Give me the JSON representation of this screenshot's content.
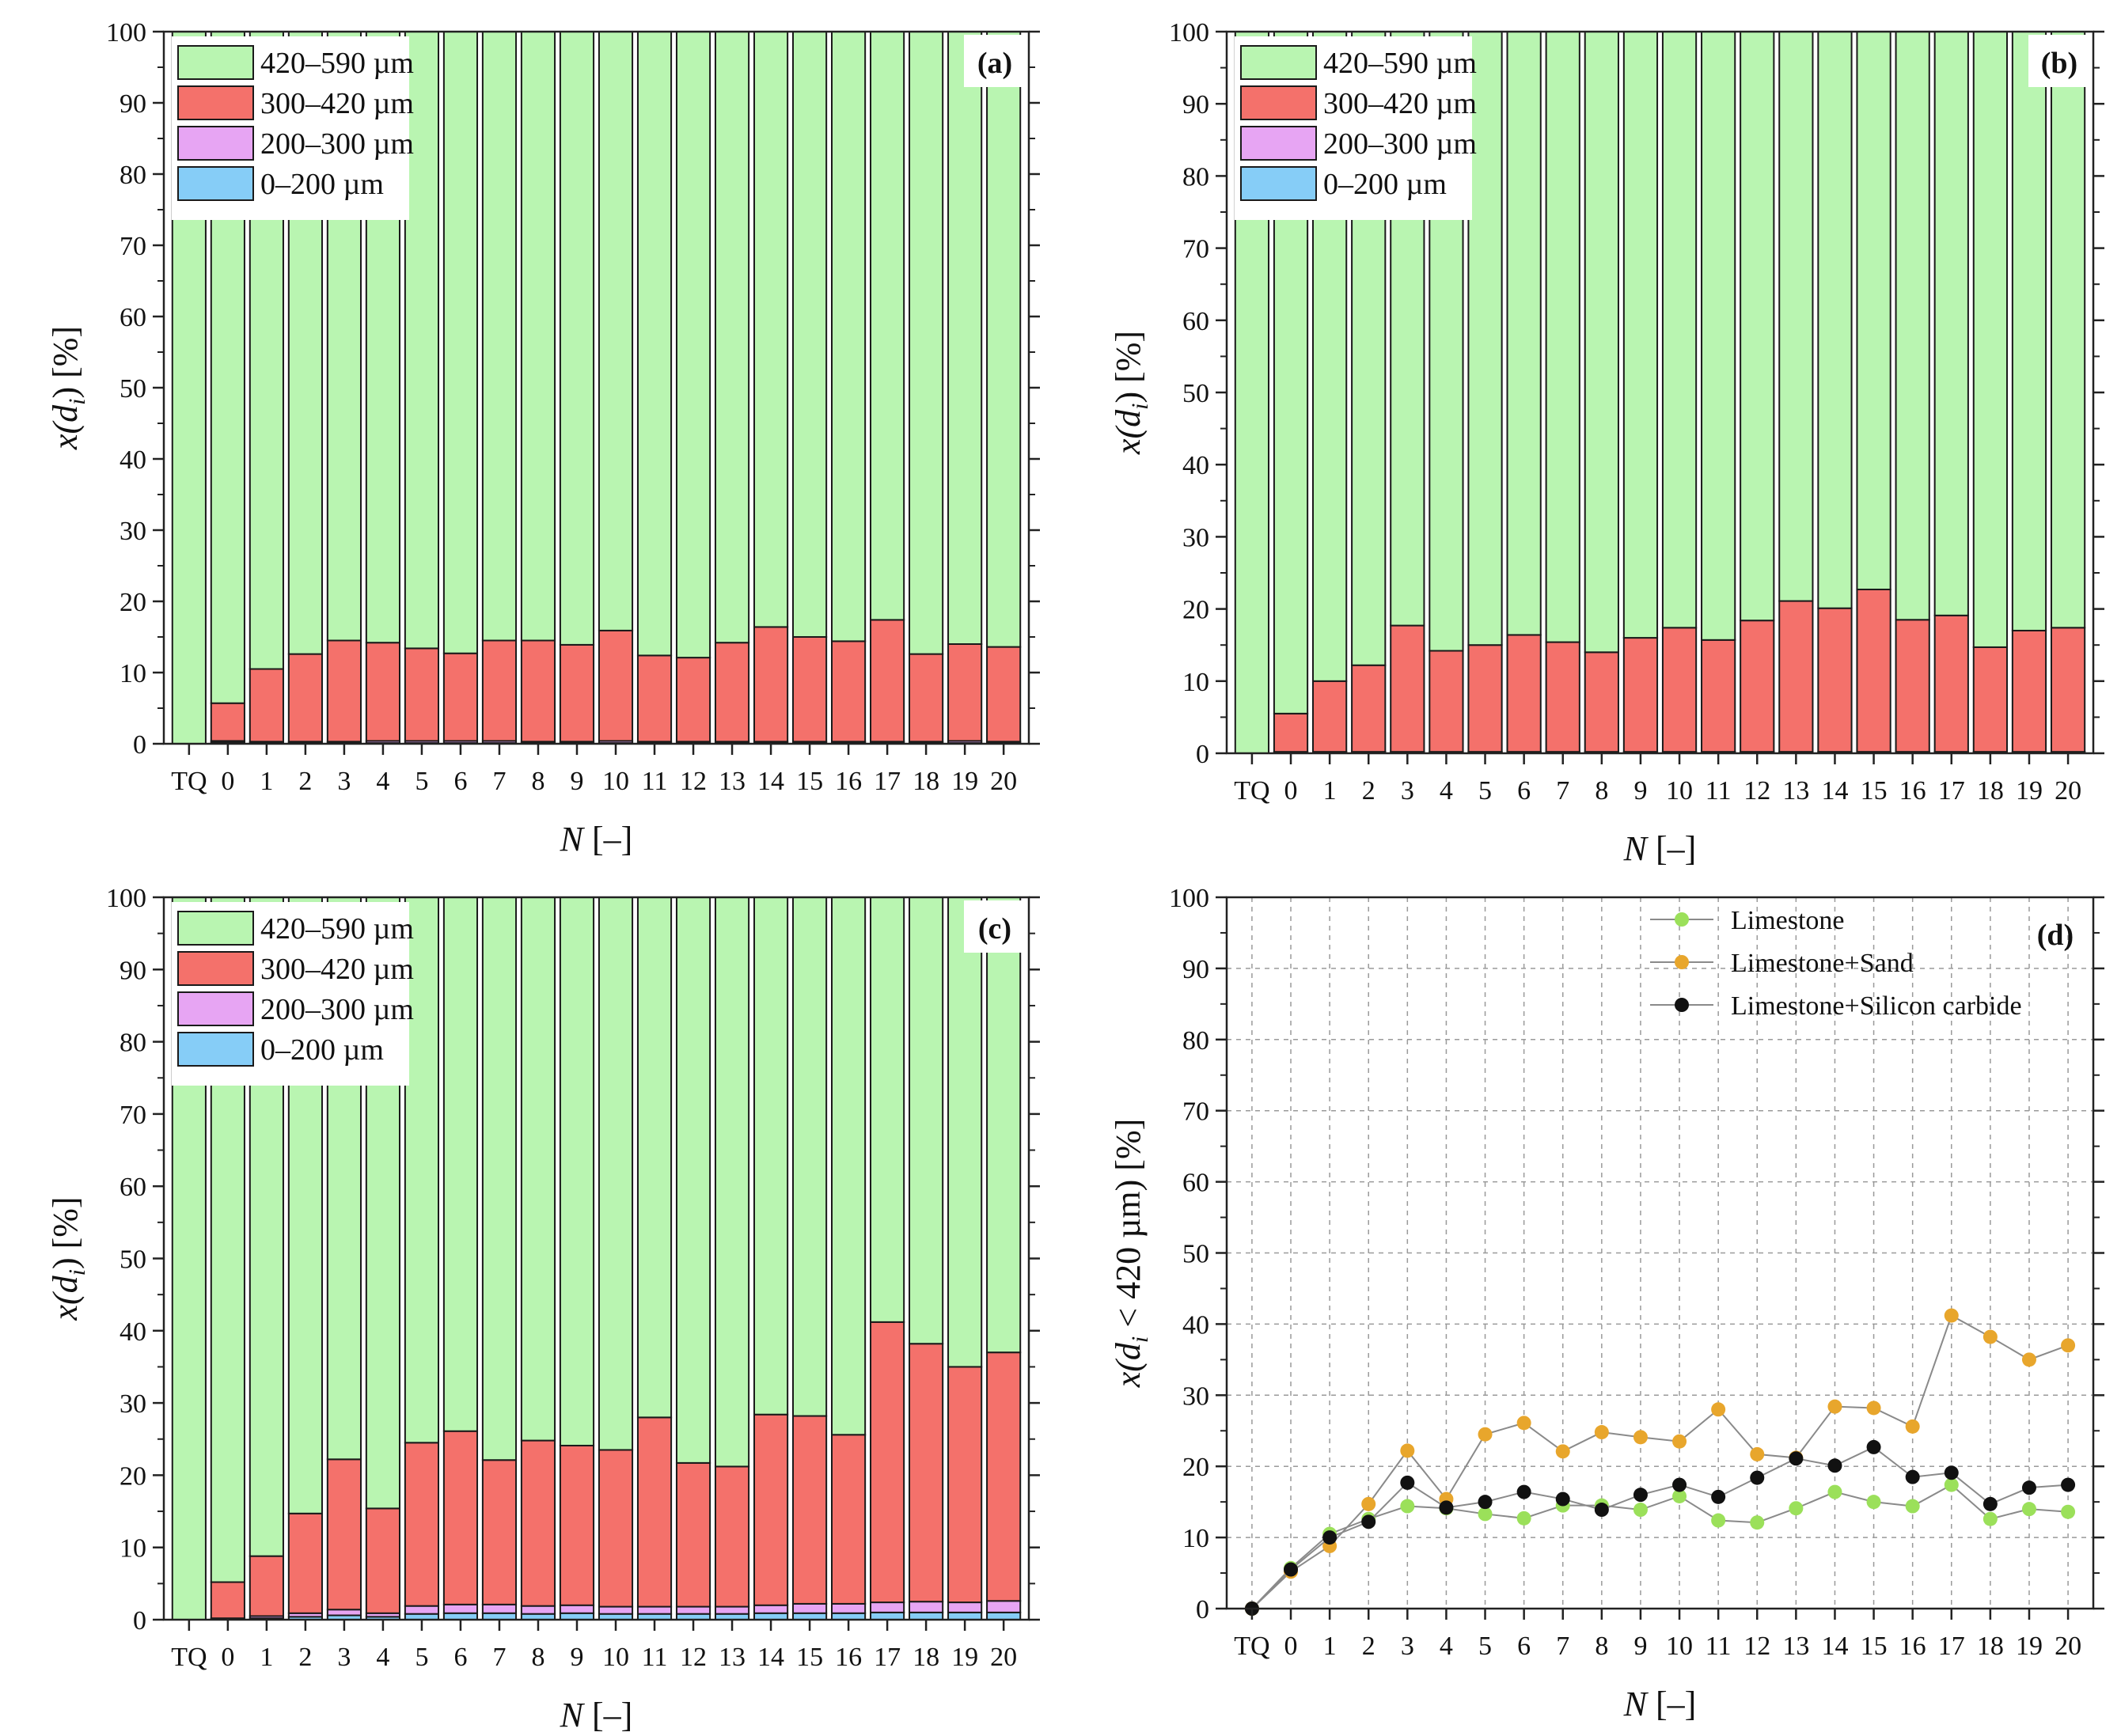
{
  "colors": {
    "range_420_590": "#b9f5b1",
    "range_300_420": "#f4716b",
    "range_200_300": "#e7a5f3",
    "range_0_200": "#86cdf7",
    "limestone": "#9be05a",
    "limestone_sand": "#e8a62c",
    "limestone_sic": "#111111"
  },
  "chart_data": [
    {
      "type": "bar",
      "stacked": true,
      "panel_label": "(a)",
      "categories": [
        "TQ",
        "0",
        "1",
        "2",
        "3",
        "4",
        "5",
        "6",
        "7",
        "8",
        "9",
        "10",
        "11",
        "12",
        "13",
        "14",
        "15",
        "16",
        "17",
        "18",
        "19",
        "20"
      ],
      "series": [
        {
          "name": "0–200     µm",
          "color_key": "range_0_200",
          "values": [
            0,
            0.2,
            0.1,
            0.1,
            0.1,
            0.1,
            0.1,
            0.1,
            0.1,
            0.1,
            0.1,
            0.1,
            0.1,
            0.1,
            0.1,
            0.1,
            0.1,
            0.1,
            0.1,
            0.1,
            0.1,
            0.1
          ]
        },
        {
          "name": "200–300 µm",
          "color_key": "range_200_300",
          "values": [
            0,
            0.2,
            0.2,
            0.2,
            0.2,
            0.3,
            0.3,
            0.3,
            0.3,
            0.2,
            0.2,
            0.3,
            0.2,
            0.2,
            0.2,
            0.2,
            0.2,
            0.2,
            0.2,
            0.2,
            0.3,
            0.2
          ]
        },
        {
          "name": "300–420 µm",
          "color_key": "range_300_420",
          "values": [
            0,
            5.3,
            10.2,
            12.3,
            14.2,
            13.8,
            13.0,
            12.3,
            14.1,
            14.2,
            13.6,
            15.5,
            12.1,
            11.8,
            13.9,
            16.1,
            14.7,
            14.1,
            17.1,
            12.3,
            13.6,
            13.3
          ]
        },
        {
          "name": "420–590 µm",
          "color_key": "range_420_590",
          "values": [
            100,
            94.3,
            89.5,
            87.4,
            85.5,
            85.8,
            86.6,
            87.3,
            85.5,
            85.5,
            86.1,
            84.1,
            87.6,
            87.9,
            85.8,
            83.6,
            85.0,
            85.6,
            82.6,
            87.4,
            86.0,
            86.4
          ]
        }
      ],
      "xlabel_italic": "N",
      "xlabel_unit": " [–]",
      "ylabel_prefix": "x(",
      "ylabel_italic": "d",
      "ylabel_sub": "i",
      "ylabel_suffix": ") [%]",
      "ylim": [
        0,
        100
      ],
      "yticks": [
        0,
        10,
        20,
        30,
        40,
        50,
        60,
        70,
        80,
        90,
        100
      ],
      "legend_position": "top-left"
    },
    {
      "type": "bar",
      "stacked": true,
      "panel_label": "(b)",
      "categories": [
        "TQ",
        "0",
        "1",
        "2",
        "3",
        "4",
        "5",
        "6",
        "7",
        "8",
        "9",
        "10",
        "11",
        "12",
        "13",
        "14",
        "15",
        "16",
        "17",
        "18",
        "19",
        "20"
      ],
      "series": [
        {
          "name": "0–200     µm",
          "color_key": "range_0_200",
          "values": [
            0,
            0.1,
            0.1,
            0.1,
            0.1,
            0.1,
            0.1,
            0.1,
            0.1,
            0.1,
            0.1,
            0.1,
            0.1,
            0.1,
            0.1,
            0.1,
            0.1,
            0.1,
            0.1,
            0.1,
            0.1,
            0.1
          ]
        },
        {
          "name": "200–300 µm",
          "color_key": "range_200_300",
          "values": [
            0,
            0.1,
            0.1,
            0.1,
            0.1,
            0.1,
            0.1,
            0.1,
            0.1,
            0.1,
            0.1,
            0.1,
            0.1,
            0.1,
            0.1,
            0.1,
            0.1,
            0.1,
            0.1,
            0.1,
            0.1,
            0.1
          ]
        },
        {
          "name": "300–420 µm",
          "color_key": "range_300_420",
          "values": [
            0,
            5.3,
            9.8,
            12.0,
            17.5,
            14.0,
            14.8,
            16.2,
            15.2,
            13.8,
            15.8,
            17.2,
            15.5,
            18.2,
            20.9,
            19.9,
            22.5,
            18.3,
            18.9,
            14.5,
            16.8,
            17.2
          ]
        },
        {
          "name": "420–590 µm",
          "color_key": "range_420_590",
          "values": [
            100,
            94.5,
            90.0,
            87.8,
            82.3,
            85.8,
            85.0,
            83.6,
            84.6,
            86.0,
            84.0,
            82.6,
            84.3,
            81.6,
            78.9,
            79.9,
            77.3,
            81.5,
            80.9,
            85.3,
            83.0,
            82.6
          ]
        }
      ],
      "xlabel_italic": "N",
      "xlabel_unit": " [–]",
      "ylabel_prefix": "x(",
      "ylabel_italic": "d",
      "ylabel_sub": "i",
      "ylabel_suffix": ") [%]",
      "ylim": [
        0,
        100
      ],
      "yticks": [
        0,
        10,
        20,
        30,
        40,
        50,
        60,
        70,
        80,
        90,
        100
      ],
      "legend_position": "top-left"
    },
    {
      "type": "bar",
      "stacked": true,
      "panel_label": "(c)",
      "categories": [
        "TQ",
        "0",
        "1",
        "2",
        "3",
        "4",
        "5",
        "6",
        "7",
        "8",
        "9",
        "10",
        "11",
        "12",
        "13",
        "14",
        "15",
        "16",
        "17",
        "18",
        "19",
        "20"
      ],
      "series": [
        {
          "name": "0–200     µm",
          "color_key": "range_0_200",
          "values": [
            0,
            0.1,
            0.2,
            0.4,
            0.6,
            0.4,
            0.8,
            0.9,
            0.9,
            0.8,
            0.9,
            0.8,
            0.8,
            0.8,
            0.8,
            0.9,
            0.9,
            0.9,
            1.0,
            1.0,
            1.0,
            1.0
          ]
        },
        {
          "name": "200–300 µm",
          "color_key": "range_200_300",
          "values": [
            0,
            0.1,
            0.3,
            0.5,
            0.8,
            0.5,
            1.1,
            1.2,
            1.2,
            1.1,
            1.1,
            1.0,
            1.0,
            1.0,
            1.0,
            1.1,
            1.3,
            1.3,
            1.4,
            1.5,
            1.4,
            1.6
          ]
        },
        {
          "name": "300–420 µm",
          "color_key": "range_300_420",
          "values": [
            0,
            5.0,
            8.3,
            13.8,
            20.8,
            14.5,
            22.6,
            24.0,
            20.0,
            22.9,
            22.1,
            21.7,
            26.2,
            19.9,
            19.4,
            26.4,
            26.0,
            23.4,
            38.8,
            35.7,
            32.6,
            34.4
          ]
        },
        {
          "name": "420–590 µm",
          "color_key": "range_420_590",
          "values": [
            100,
            94.8,
            91.2,
            85.3,
            77.8,
            84.6,
            75.5,
            73.9,
            77.9,
            75.2,
            75.9,
            76.5,
            72.0,
            78.3,
            78.8,
            71.6,
            71.8,
            74.4,
            58.8,
            61.8,
            65.0,
            63.0
          ]
        }
      ],
      "xlabel_italic": "N",
      "xlabel_unit": " [–]",
      "ylabel_prefix": "x(",
      "ylabel_italic": "d",
      "ylabel_sub": "i",
      "ylabel_suffix": ") [%]",
      "ylim": [
        0,
        100
      ],
      "yticks": [
        0,
        10,
        20,
        30,
        40,
        50,
        60,
        70,
        80,
        90,
        100
      ],
      "legend_position": "top-left"
    },
    {
      "type": "line",
      "panel_label": "(d)",
      "categories": [
        "TQ",
        "0",
        "1",
        "2",
        "3",
        "4",
        "5",
        "6",
        "7",
        "8",
        "9",
        "10",
        "11",
        "12",
        "13",
        "14",
        "15",
        "16",
        "17",
        "18",
        "19",
        "20"
      ],
      "series": [
        {
          "name": "Limestone",
          "color_key": "limestone",
          "values": [
            0,
            5.7,
            10.5,
            12.6,
            14.4,
            14.1,
            13.3,
            12.7,
            14.5,
            14.5,
            13.9,
            15.8,
            12.4,
            12.1,
            14.1,
            16.4,
            15.0,
            14.4,
            17.4,
            12.6,
            14.0,
            13.6
          ]
        },
        {
          "name": "Limestone+Sand",
          "color_key": "limestone_sand",
          "values": [
            0,
            5.2,
            8.8,
            14.7,
            22.2,
            15.4,
            24.5,
            26.1,
            22.1,
            24.8,
            24.1,
            23.5,
            28.0,
            21.7,
            21.2,
            28.4,
            28.2,
            25.6,
            41.2,
            38.2,
            35.0,
            37.0
          ]
        },
        {
          "name": "Limestone+Silicon carbide",
          "color_key": "limestone_sic",
          "values": [
            0,
            5.5,
            10.0,
            12.2,
            17.7,
            14.2,
            15.0,
            16.4,
            15.4,
            13.9,
            16.0,
            17.4,
            15.7,
            18.4,
            21.1,
            20.1,
            22.7,
            18.5,
            19.1,
            14.7,
            17.0,
            17.4
          ]
        }
      ],
      "xlabel_italic": "N",
      "xlabel_unit": " [–]",
      "ylabel_prefix": "x(",
      "ylabel_italic": "d",
      "ylabel_sub": "i",
      "ylabel_suffix": " < 420 µm) [%]",
      "ylim": [
        0,
        100
      ],
      "yticks": [
        0,
        10,
        20,
        30,
        40,
        50,
        60,
        70,
        80,
        90,
        100
      ],
      "grid": true,
      "legend_position": "top-right"
    }
  ]
}
